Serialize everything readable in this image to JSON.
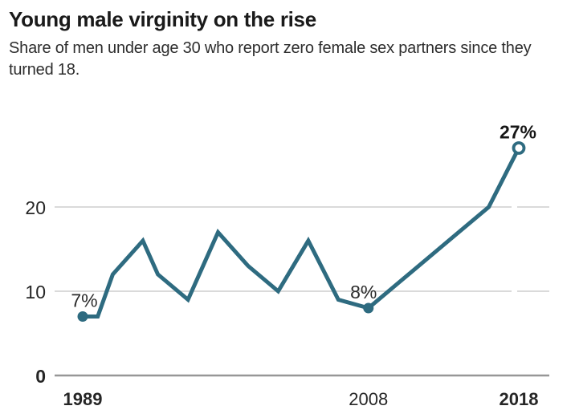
{
  "chart_data": {
    "type": "line",
    "title": "Young male virginity on the rise",
    "subtitle": "Share of men under age 30 who report zero female sex partners since they turned 18.",
    "x": [
      1989,
      1990,
      1991,
      1993,
      1994,
      1996,
      1998,
      2000,
      2002,
      2004,
      2006,
      2008,
      2010,
      2012,
      2014,
      2016,
      2018
    ],
    "values": [
      7,
      7,
      12,
      16,
      12,
      9,
      17,
      13,
      10,
      16,
      9,
      8,
      11,
      14,
      17,
      20,
      27
    ],
    "xlim": [
      1989,
      2018
    ],
    "ylim": [
      0,
      30
    ],
    "grid": true,
    "legend": false,
    "y_ticks": [
      {
        "value": 0,
        "label": "0",
        "bold": true
      },
      {
        "value": 10,
        "label": "10",
        "bold": false
      },
      {
        "value": 20,
        "label": "20",
        "bold": false
      }
    ],
    "x_ticks": [
      {
        "year": 1989,
        "label": "1989",
        "bold": true
      },
      {
        "year": 2008,
        "label": "2008",
        "bold": false
      },
      {
        "year": 2018,
        "label": "2018",
        "bold": true
      }
    ],
    "markers": [
      {
        "year": 1989,
        "value": 7,
        "style": "filled"
      },
      {
        "year": 2008,
        "value": 8,
        "style": "filled"
      },
      {
        "year": 2018,
        "value": 27,
        "style": "open"
      }
    ],
    "annotations": [
      {
        "year": 1989,
        "value": 7,
        "label": "7%",
        "bold": false,
        "dx": 2
      },
      {
        "year": 2008,
        "value": 8,
        "label": "8%",
        "bold": false,
        "dx": -6
      },
      {
        "year": 2018,
        "value": 27,
        "label": "27%",
        "bold": true,
        "dx": -1
      }
    ],
    "colors": {
      "line": "#2e6b80",
      "grid": "#cdcdcd",
      "baseline": "#979797",
      "title": "#1a1a1a",
      "subtitle": "#2d2d2d",
      "tick_label": "#262626",
      "annotation": "#2b2b2b",
      "annotation_bold": "#161616"
    }
  }
}
